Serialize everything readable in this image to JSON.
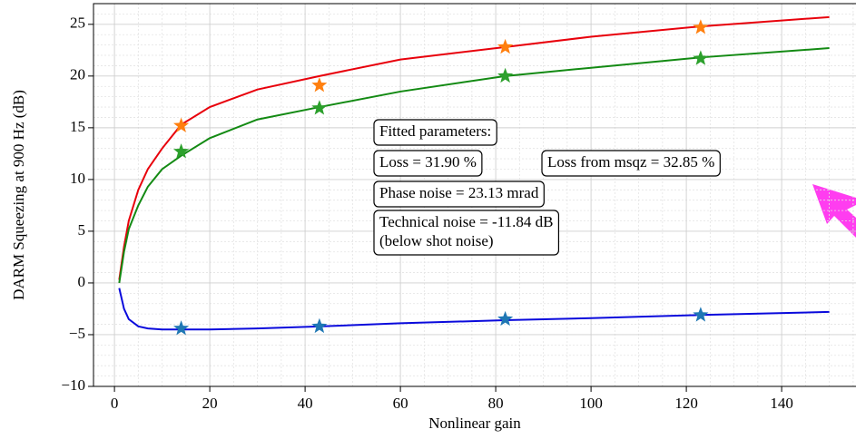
{
  "chart_data": {
    "type": "line",
    "x_label": "Nonlinear gain",
    "y_label": "DARM Squeezing at 900 Hz (dB)",
    "xlim": [
      -4.4,
      155.6
    ],
    "ylim": [
      -10,
      27
    ],
    "xticks": [
      0,
      20,
      40,
      60,
      80,
      100,
      120,
      140
    ],
    "yticks": [
      {
        "value": -10,
        "label": "−10"
      },
      {
        "value": -5,
        "label": "−5"
      },
      0,
      5,
      10,
      15,
      20,
      25
    ],
    "xminorticks": [
      5,
      10,
      15,
      25,
      30,
      35,
      45,
      50,
      55,
      65,
      70,
      75,
      85,
      90,
      95,
      105,
      110,
      115,
      125,
      130,
      135,
      145,
      150,
      155
    ],
    "yminorticks": [
      -9,
      -8,
      -7,
      -6,
      -4,
      -3,
      -2,
      -1,
      1,
      2,
      3,
      4,
      6,
      7,
      8,
      9,
      11,
      12,
      13,
      14,
      16,
      17,
      18,
      19,
      21,
      22,
      23,
      24,
      26
    ],
    "grid": true,
    "series": [
      {
        "type": "line",
        "color": "#e8000b",
        "x": [
          1,
          2,
          3,
          5,
          7,
          10,
          14,
          20,
          30,
          43,
          60,
          82,
          100,
          123,
          150
        ],
        "values": [
          0.3,
          3.5,
          6,
          9,
          11,
          13,
          15.3,
          17,
          18.7,
          20,
          21.6,
          22.8,
          23.8,
          24.8,
          25.7
        ]
      },
      {
        "type": "line",
        "color": "#138a13",
        "x": [
          1,
          2,
          3,
          5,
          7,
          10,
          14,
          20,
          30,
          43,
          60,
          82,
          100,
          123,
          150
        ],
        "values": [
          0,
          3,
          5.2,
          7.5,
          9.3,
          11,
          12.3,
          14,
          15.8,
          17,
          18.5,
          20,
          20.8,
          21.8,
          22.7
        ]
      },
      {
        "type": "line",
        "color": "#0a0adc",
        "x": [
          1,
          2,
          3,
          5,
          7,
          10,
          14,
          20,
          30,
          43,
          60,
          82,
          100,
          123,
          150
        ],
        "values": [
          -0.5,
          -2.5,
          -3.5,
          -4.2,
          -4.4,
          -4.5,
          -4.5,
          -4.5,
          -4.4,
          -4.2,
          -3.9,
          -3.6,
          -3.4,
          -3.1,
          -2.8
        ]
      },
      {
        "type": "star",
        "color": "#ff7f0e",
        "x": [
          14,
          43,
          82,
          123
        ],
        "values": [
          15.2,
          19.1,
          22.8,
          24.7
        ]
      },
      {
        "type": "star",
        "color": "#2ca02c",
        "x": [
          14,
          43,
          82,
          123
        ],
        "values": [
          12.7,
          16.9,
          20.0,
          21.7
        ]
      },
      {
        "type": "star",
        "color": "#1f77b4",
        "x": [
          14,
          43,
          82,
          123
        ],
        "values": [
          -4.4,
          -4.2,
          -3.5,
          -3.1
        ]
      }
    ],
    "annotations": [
      {
        "lines": [
          "Fitted parameters:"
        ]
      },
      {
        "lines": [
          "Loss = 31.90 %"
        ]
      },
      {
        "lines": [
          "Loss from msqz = 32.85 %"
        ]
      },
      {
        "lines": [
          "Phase noise = 23.13 mrad"
        ]
      },
      {
        "lines": [
          "Technical noise = -11.84 dB",
          "(below shot noise)"
        ]
      }
    ]
  }
}
